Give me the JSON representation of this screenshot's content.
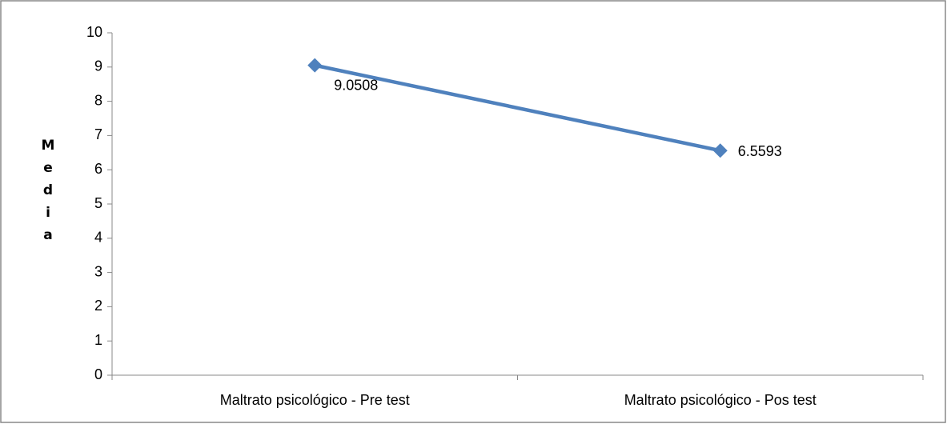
{
  "chart_data": {
    "type": "line",
    "y_label": "Media",
    "categories": [
      "Maltrato psicológico - Pre test",
      "Maltrato psicológico - Pos test"
    ],
    "values": [
      9.0508,
      6.5593
    ],
    "color": "#4f81bd",
    "ylim": [
      0,
      10
    ],
    "yticks": [
      0,
      1,
      2,
      3,
      4,
      5,
      6,
      7,
      8,
      9,
      10
    ],
    "grid": false
  }
}
